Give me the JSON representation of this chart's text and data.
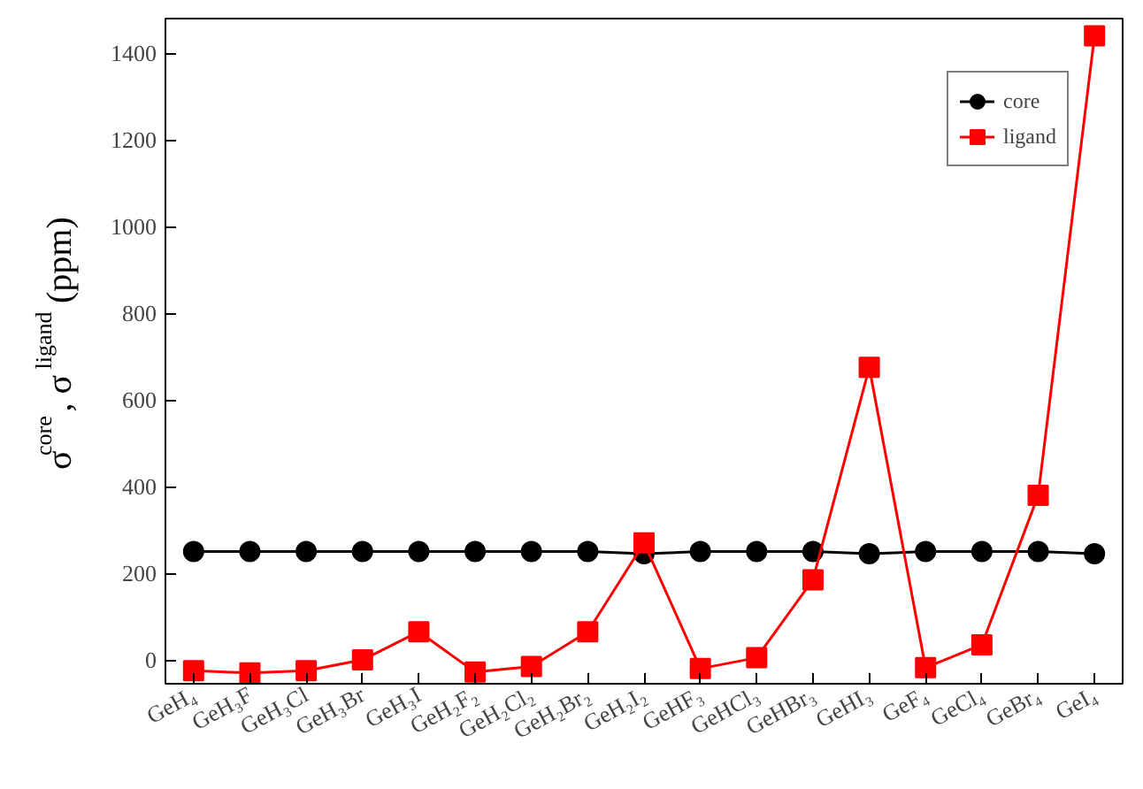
{
  "chart_data": {
    "type": "line",
    "ylabel": "σ$^{core}$, σ$^{ligand}$(ppm)",
    "categories": [
      "GeH₄",
      "GeH₃F",
      "GeH₃Cl",
      "GeH₃Br",
      "GeH₃I",
      "GeH₂F₂",
      "GeH₂Cl₂",
      "GeH₂Br₂",
      "GeH₂I₂",
      "GeHF₃",
      "GeHCl₃",
      "GeHBr₃",
      "GeHI₃",
      "GeF₄",
      "GeCl₄",
      "GeBr₄",
      "GeI₄"
    ],
    "series": [
      {
        "name": "core",
        "color": "#000000",
        "marker": "circle",
        "values": [
          250,
          250,
          250,
          250,
          250,
          250,
          250,
          250,
          245,
          250,
          250,
          250,
          245,
          250,
          250,
          250,
          245
        ]
      },
      {
        "name": "ligand",
        "color": "#ff0000",
        "marker": "square",
        "values": [
          -25,
          -30,
          -25,
          0,
          65,
          -28,
          -15,
          65,
          270,
          -20,
          5,
          185,
          675,
          -18,
          35,
          380,
          1440
        ]
      }
    ],
    "ylim": [
      -55,
      1480
    ],
    "yticks": [
      0,
      200,
      400,
      600,
      800,
      1000,
      1200,
      1400
    ],
    "grid": false,
    "legend": "top right",
    "line_style": "solid"
  }
}
